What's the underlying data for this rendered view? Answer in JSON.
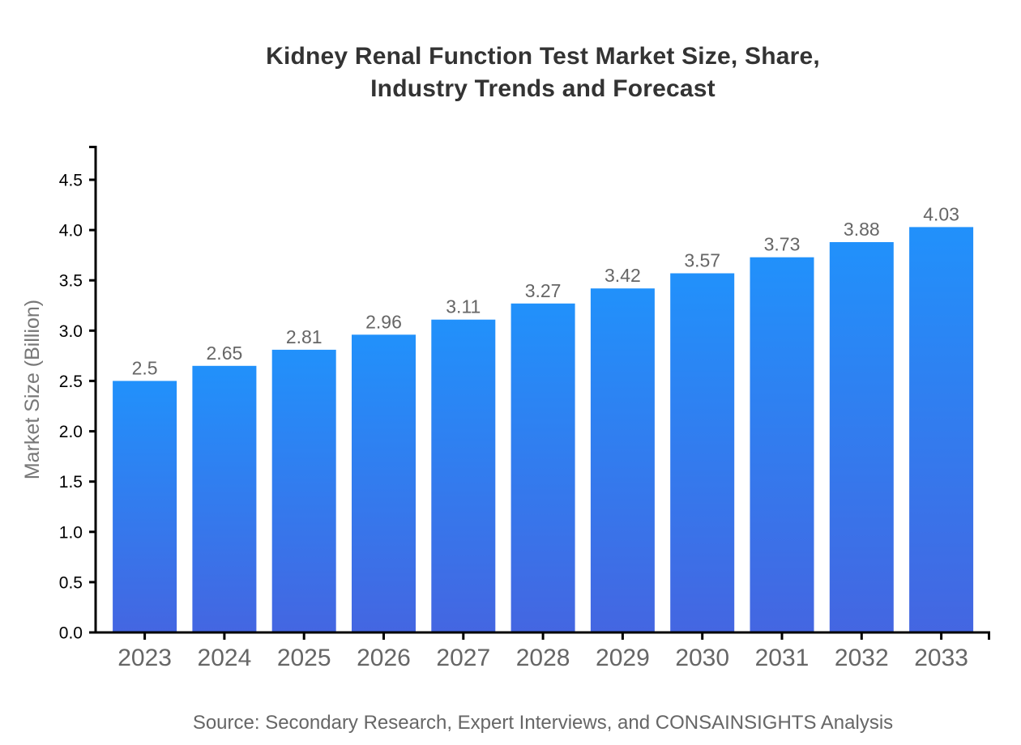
{
  "chart_data": {
    "type": "bar",
    "title": "Kidney Renal Function Test Market Size, Share,\nIndustry Trends and Forecast",
    "categories": [
      "2023",
      "2024",
      "2025",
      "2026",
      "2027",
      "2028",
      "2029",
      "2030",
      "2031",
      "2032",
      "2033"
    ],
    "values": [
      2.5,
      2.65,
      2.81,
      2.96,
      3.11,
      3.27,
      3.42,
      3.57,
      3.73,
      3.88,
      4.03
    ],
    "value_labels": [
      "2.5",
      "2.65",
      "2.81",
      "2.96",
      "3.11",
      "3.27",
      "3.42",
      "3.57",
      "3.73",
      "3.88",
      "4.03"
    ],
    "xlabel": "",
    "ylabel": "Market Size (Billion)",
    "ylim": [
      0,
      4.5
    ],
    "yticks": [
      0.0,
      0.5,
      1.0,
      1.5,
      2.0,
      2.5,
      3.0,
      3.5,
      4.0,
      4.5
    ],
    "ytick_labels": [
      "0.0",
      "0.5",
      "1.0",
      "1.5",
      "2.0",
      "2.5",
      "3.0",
      "3.5",
      "4.0",
      "4.5"
    ],
    "grid": false,
    "legend": "none",
    "bar_label_position": "above",
    "source_note": "Source: Secondary Research, Expert Interviews, and CONSAINSIGHTS Analysis",
    "colors": {
      "background": "#ffffff",
      "bar_gradient_top": "#2191fb",
      "bar_gradient_bottom": "#4466e1",
      "title_text": "#333333",
      "axis_line": "#000000",
      "ytick_text": "#000000",
      "xtick_text": "#666666",
      "bar_value_text": "#666666",
      "ylabel_text": "#777777",
      "source_text": "#666666"
    }
  }
}
